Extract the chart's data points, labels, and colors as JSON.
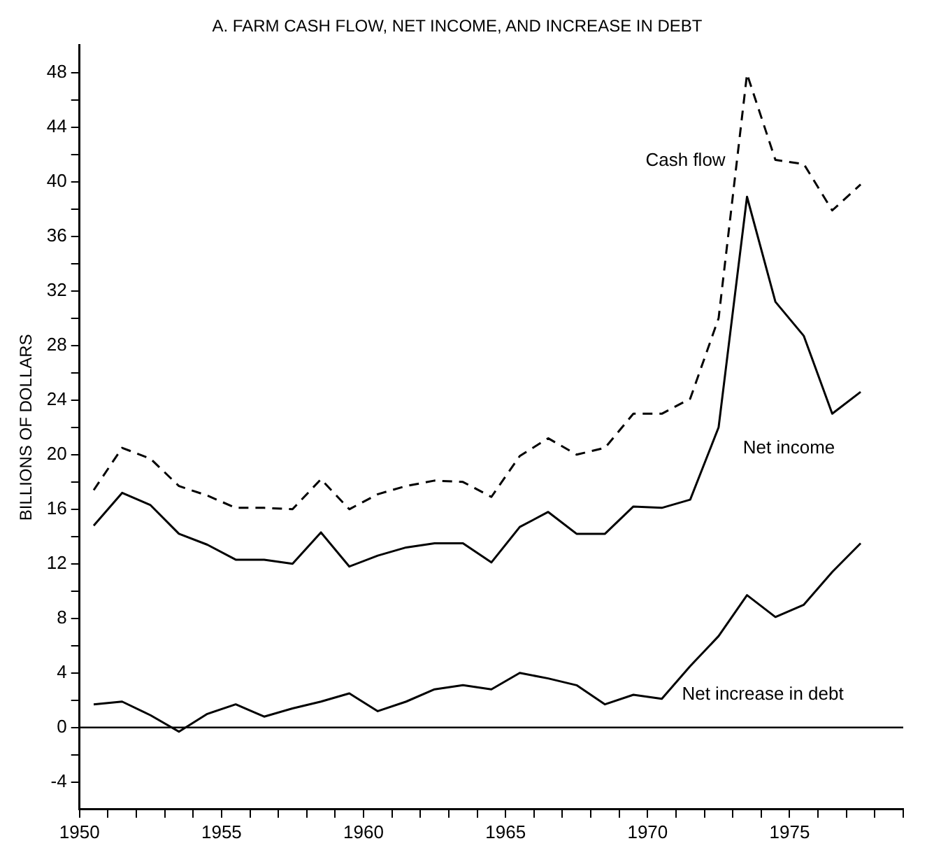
{
  "chart_data": {
    "type": "line",
    "title": "A. FARM CASH FLOW, NET INCOME, AND INCREASE IN DEBT",
    "ylabel": "BILLIONS OF DOLLARS",
    "x": [
      1950.5,
      1951.5,
      1952.5,
      1953.5,
      1954.5,
      1955.5,
      1956.5,
      1957.5,
      1958.5,
      1959.5,
      1960.5,
      1961.5,
      1962.5,
      1963.5,
      1964.5,
      1965.5,
      1966.5,
      1967.5,
      1968.5,
      1969.5,
      1970.5,
      1971.5,
      1972.5,
      1973.5,
      1974.5,
      1975.5,
      1976.5,
      1977.5
    ],
    "series": [
      {
        "name": "Cash flow",
        "color": "#000000",
        "line_style": "dashed",
        "values": [
          17.4,
          20.5,
          19.7,
          17.7,
          17.0,
          16.1,
          16.1,
          16.0,
          18.2,
          16.0,
          17.1,
          17.7,
          18.1,
          18.0,
          16.9,
          19.9,
          21.2,
          20.0,
          20.5,
          23.0,
          23.0,
          24.1,
          30.0,
          47.9,
          41.6,
          41.3,
          37.9,
          39.8
        ]
      },
      {
        "name": "Net income",
        "color": "#000000",
        "line_style": "solid",
        "values": [
          14.8,
          17.2,
          16.3,
          14.2,
          13.4,
          12.3,
          12.3,
          12.0,
          14.3,
          11.8,
          12.6,
          13.2,
          13.5,
          13.5,
          12.1,
          14.7,
          15.8,
          14.2,
          14.2,
          16.2,
          16.1,
          16.7,
          22.0,
          38.9,
          31.2,
          28.7,
          23.0,
          24.6
        ]
      },
      {
        "name": "Net increase in debt",
        "color": "#000000",
        "line_style": "solid",
        "values": [
          1.7,
          1.9,
          0.9,
          -0.3,
          1.0,
          1.7,
          0.8,
          1.4,
          1.9,
          2.5,
          1.2,
          1.9,
          2.8,
          3.1,
          2.8,
          4.0,
          3.6,
          3.1,
          1.7,
          2.4,
          2.1,
          4.5,
          6.7,
          9.7,
          8.1,
          9.0,
          11.4,
          13.5
        ]
      }
    ],
    "ref_lines": [
      {
        "axis": "y",
        "value": 0,
        "color": "#000000",
        "line_style": "solid"
      }
    ],
    "xlim": [
      1950,
      1979
    ],
    "xticks": [
      1950,
      {
        "value": 1951,
        "label": null
      },
      {
        "value": 1952,
        "label": null
      },
      {
        "value": 1953,
        "label": null
      },
      {
        "value": 1954,
        "label": null
      },
      1955,
      {
        "value": 1956,
        "label": null
      },
      {
        "value": 1957,
        "label": null
      },
      {
        "value": 1958,
        "label": null
      },
      {
        "value": 1959,
        "label": null
      },
      1960,
      {
        "value": 1961,
        "label": null
      },
      {
        "value": 1962,
        "label": null
      },
      {
        "value": 1963,
        "label": null
      },
      {
        "value": 1964,
        "label": null
      },
      1965,
      {
        "value": 1966,
        "label": null
      },
      {
        "value": 1967,
        "label": null
      },
      {
        "value": 1968,
        "label": null
      },
      {
        "value": 1969,
        "label": null
      },
      1970,
      {
        "value": 1971,
        "label": null
      },
      {
        "value": 1972,
        "label": null
      },
      {
        "value": 1973,
        "label": null
      },
      {
        "value": 1974,
        "label": null
      },
      1975,
      {
        "value": 1976,
        "label": null
      },
      {
        "value": 1977,
        "label": null
      },
      {
        "value": 1978,
        "label": null
      },
      {
        "value": 1979,
        "label": null
      }
    ],
    "ylim": [
      -6,
      50
    ],
    "yticks": [
      -4,
      {
        "value": -2,
        "label": null
      },
      0,
      {
        "value": 2,
        "label": null
      },
      4,
      {
        "value": 6,
        "label": null
      },
      8,
      {
        "value": 10,
        "label": null
      },
      12,
      {
        "value": 14,
        "label": null
      },
      16,
      {
        "value": 18,
        "label": null
      },
      20,
      {
        "value": 22,
        "label": null
      },
      24,
      {
        "value": 26,
        "label": null
      },
      28,
      {
        "value": 30,
        "label": null
      },
      32,
      {
        "value": 34,
        "label": null
      },
      36,
      {
        "value": 38,
        "label": null
      },
      40,
      {
        "value": 42,
        "label": null
      },
      44,
      {
        "value": 46,
        "label": null
      },
      48
    ],
    "grid": false,
    "legend": false,
    "marker": "none"
  }
}
